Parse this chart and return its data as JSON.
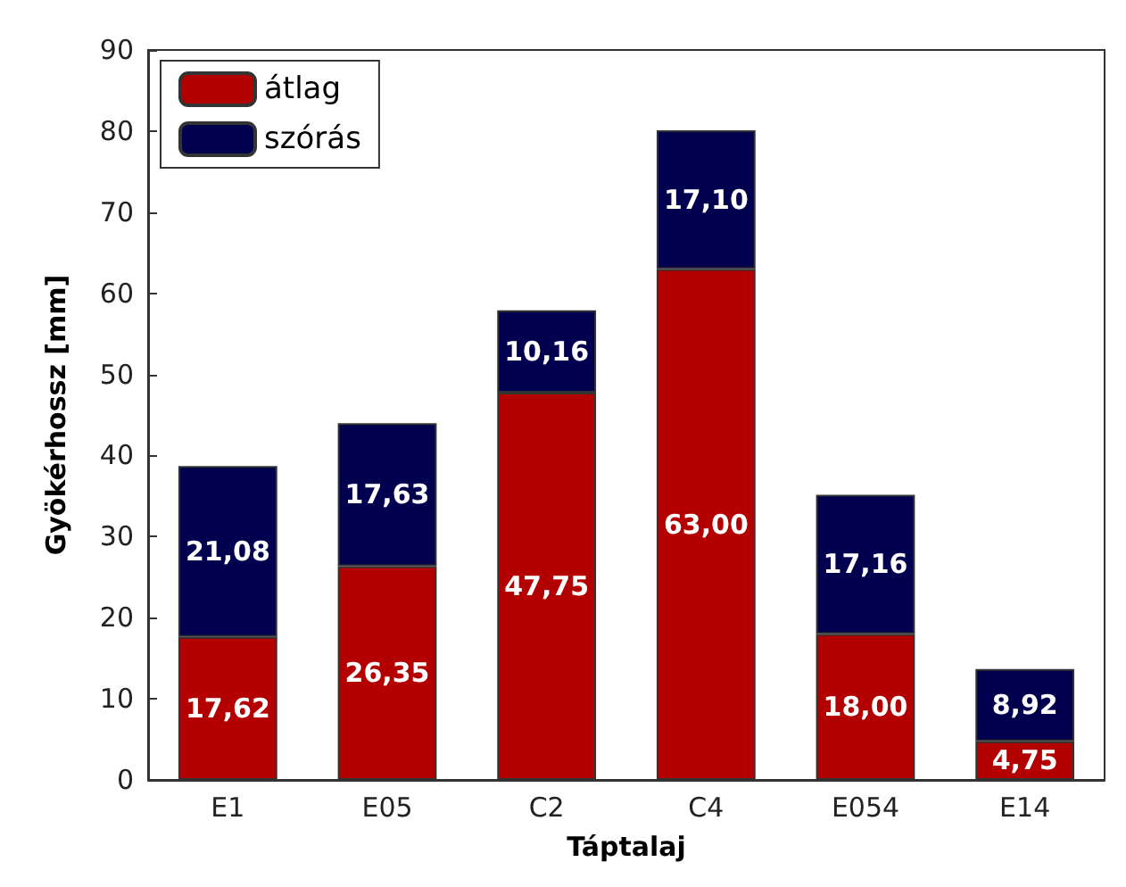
{
  "chart_data": {
    "type": "bar",
    "stacked": true,
    "xlabel": "Táptalaj",
    "ylabel": "Gyökérhossz [mm]",
    "categories": [
      "E1",
      "E05",
      "C2",
      "C4",
      "E054",
      "E14"
    ],
    "series": [
      {
        "name": "átlag",
        "color": "#b30000",
        "values": [
          17.62,
          26.35,
          47.75,
          63.0,
          18.0,
          4.75
        ],
        "value_labels": [
          "17,62",
          "26,35",
          "47,75",
          "63,00",
          "18,00",
          "4,75"
        ]
      },
      {
        "name": "szórás",
        "color": "#00004f",
        "values": [
          21.08,
          17.63,
          10.16,
          17.1,
          17.16,
          8.92
        ],
        "value_labels": [
          "21,08",
          "17,63",
          "10,16",
          "17,10",
          "17,16",
          "8,92"
        ]
      }
    ],
    "ylim": [
      0,
      90
    ],
    "yticks": [
      0,
      10,
      20,
      30,
      40,
      50,
      60,
      70,
      80,
      90
    ],
    "grid": false,
    "legend": "top left"
  }
}
